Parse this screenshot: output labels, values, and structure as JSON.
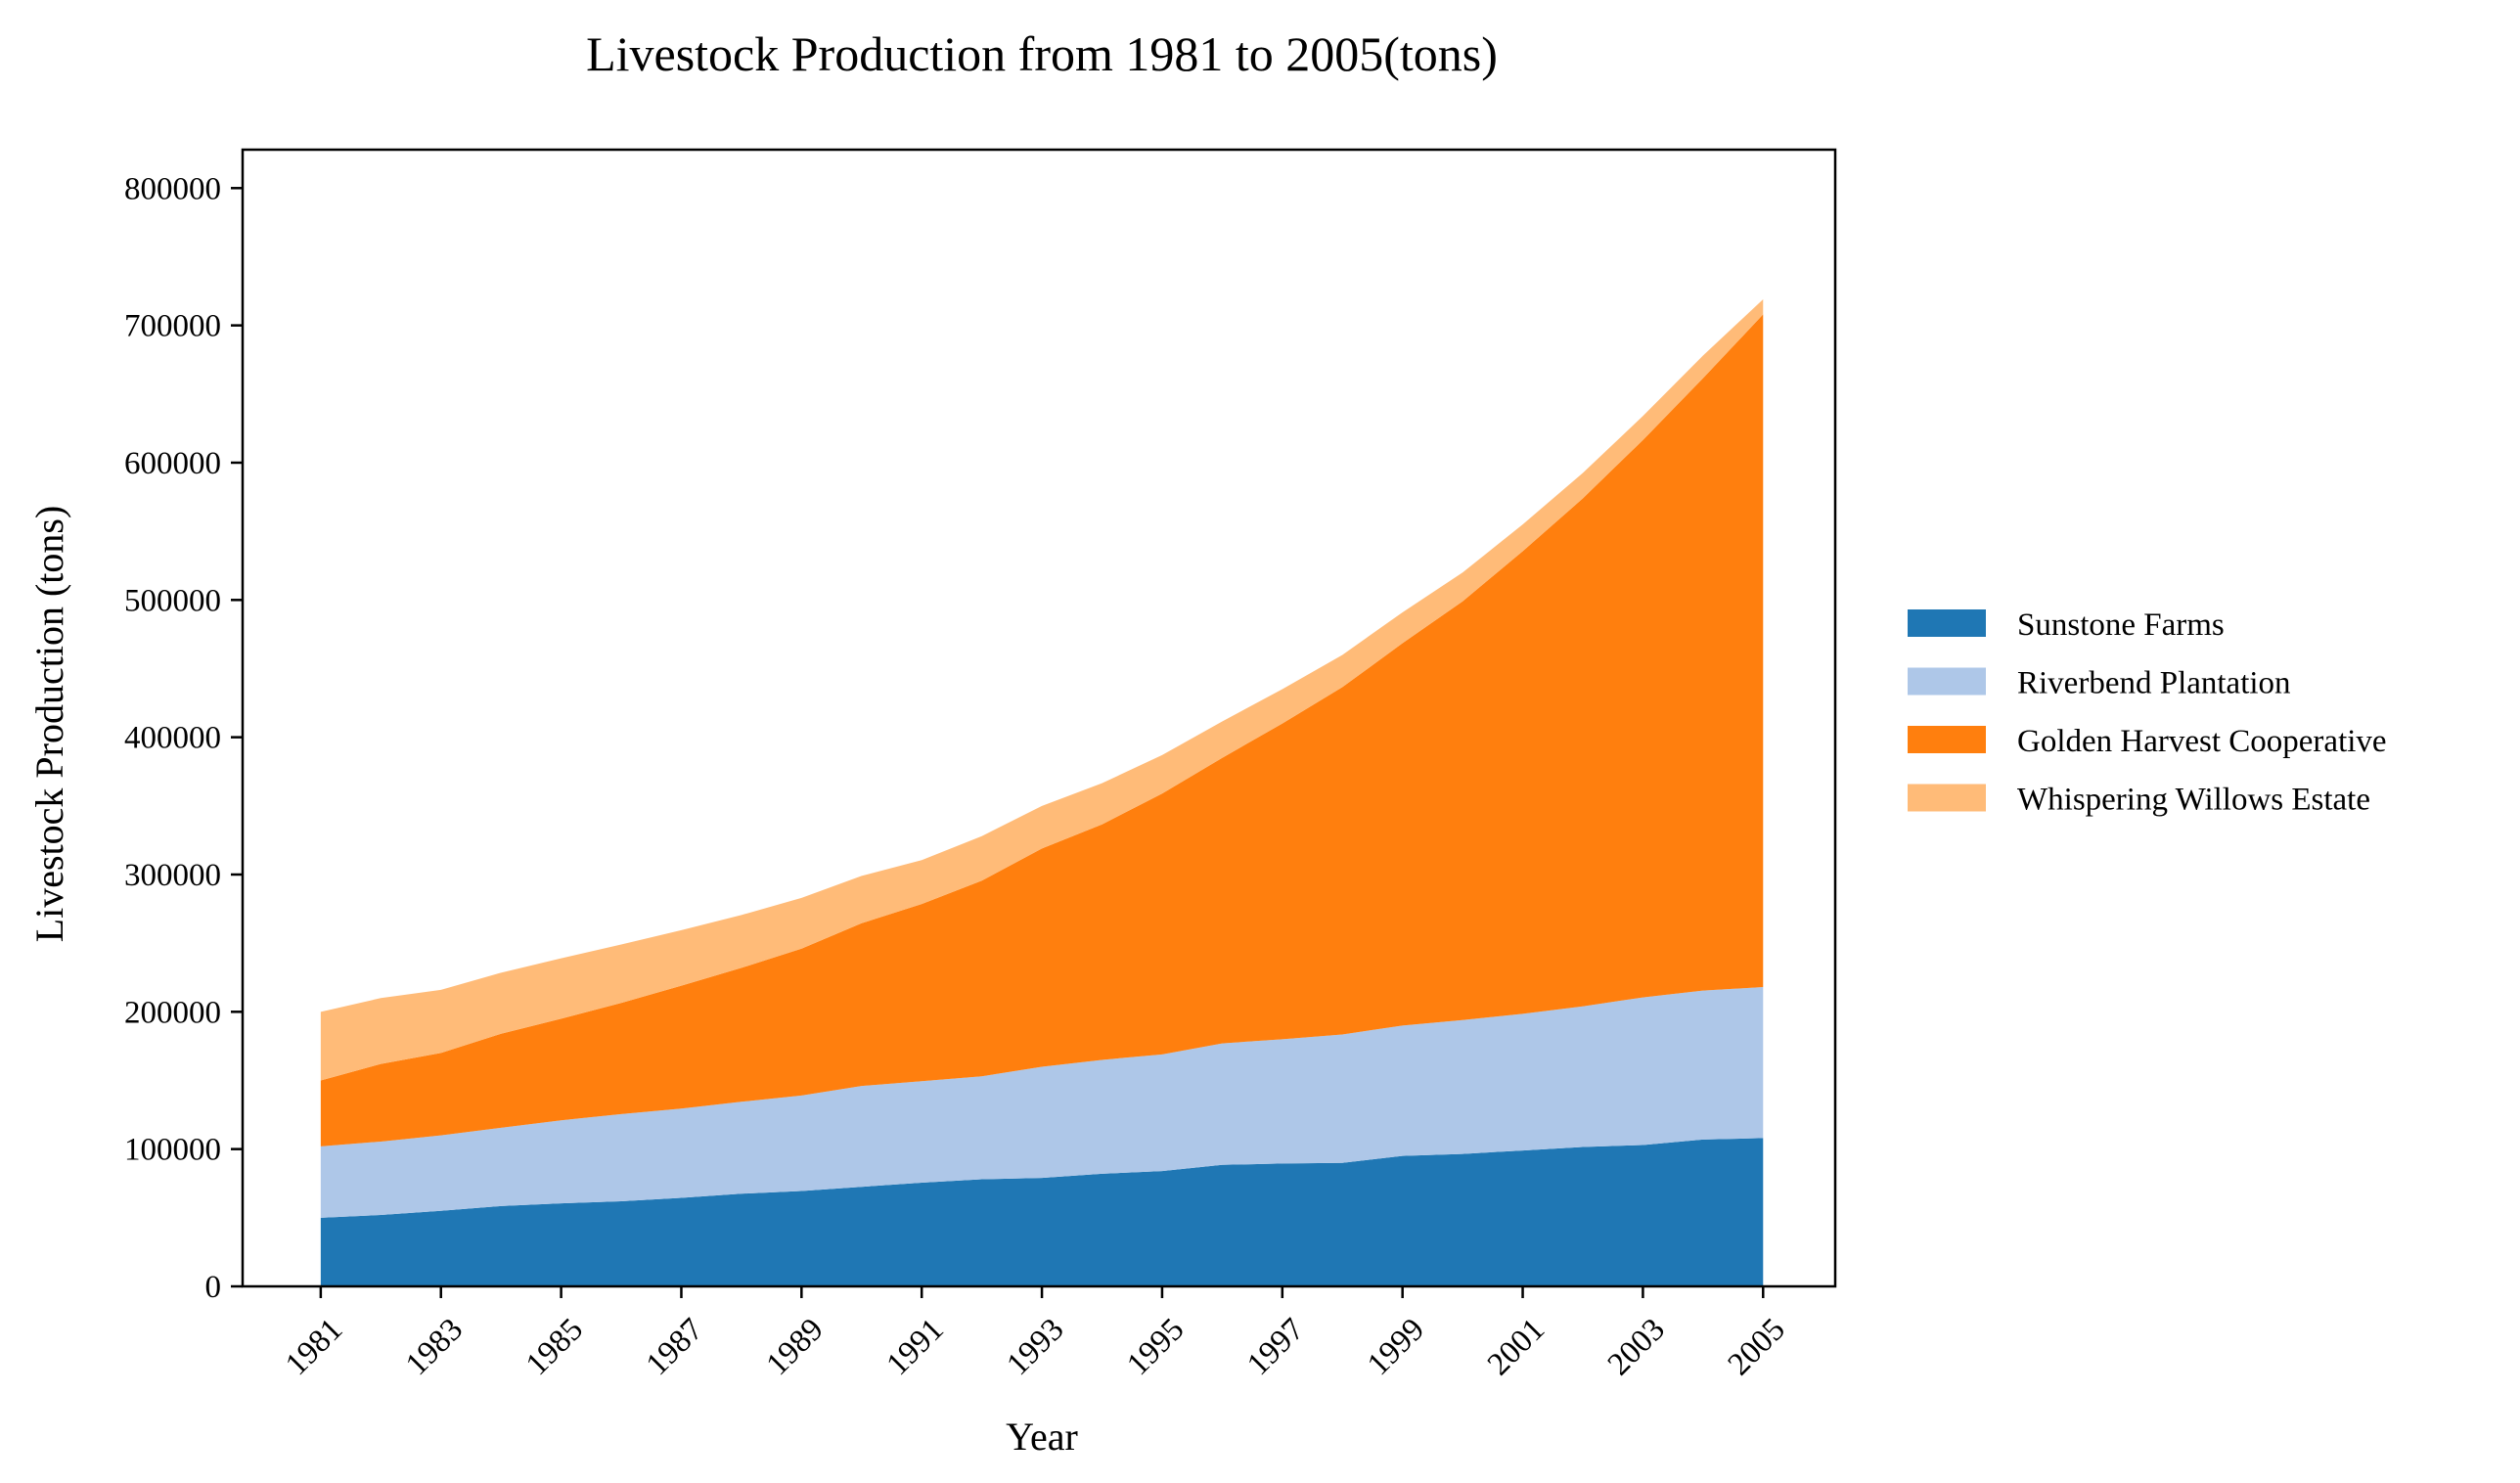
{
  "chart_data": {
    "type": "area",
    "stacked": true,
    "title": "Livestock Production from 1981 to 2005(tons)",
    "xlabel": "Year",
    "ylabel": "Livestock Production (tons)",
    "xlim": [
      1979.7,
      2006.2
    ],
    "ylim": [
      0,
      828000
    ],
    "x": [
      1981,
      1982,
      1983,
      1984,
      1985,
      1986,
      1987,
      1988,
      1989,
      1990,
      1991,
      1992,
      1993,
      1994,
      1995,
      1996,
      1997,
      1998,
      1999,
      2000,
      2001,
      2002,
      2003,
      2004,
      2005
    ],
    "x_ticks": [
      1981,
      1983,
      1985,
      1987,
      1989,
      1991,
      1993,
      1995,
      1997,
      1999,
      2001,
      2003,
      2005
    ],
    "x_tick_labels": [
      "1981",
      "1983",
      "1985",
      "1987",
      "1989",
      "1991",
      "1993",
      "1995",
      "1997",
      "1999",
      "2001",
      "2003",
      "2005"
    ],
    "y_ticks": [
      0,
      100000,
      200000,
      300000,
      400000,
      500000,
      600000,
      700000,
      800000
    ],
    "y_tick_labels": [
      "0",
      "100000",
      "200000",
      "300000",
      "400000",
      "500000",
      "600000",
      "700000",
      "800000"
    ],
    "grid": false,
    "legend_position": "right",
    "series": [
      {
        "name": "Sunstone Farms",
        "color": "#1f77b4",
        "values": [
          50000,
          52000,
          55000,
          58500,
          60500,
          62000,
          64500,
          67500,
          69500,
          72500,
          75500,
          78000,
          79000,
          82000,
          84000,
          88500,
          89500,
          90000,
          95000,
          96500,
          99000,
          101500,
          103000,
          107000,
          108000
        ]
      },
      {
        "name": "Riverbend Plantation",
        "color": "#aec7e8",
        "values": [
          52000,
          53500,
          55000,
          57000,
          60500,
          63500,
          65000,
          67000,
          69500,
          73500,
          74000,
          75000,
          81000,
          83000,
          85000,
          88500,
          90500,
          93500,
          95000,
          97500,
          99500,
          102500,
          107500,
          108500,
          110000
        ]
      },
      {
        "name": "Golden Harvest Cooperative",
        "color": "#ff7f0e",
        "values": [
          48000,
          56500,
          60000,
          68500,
          74000,
          81000,
          89500,
          97500,
          107000,
          118500,
          129000,
          142500,
          159000,
          171500,
          190000,
          208000,
          230000,
          253000,
          278500,
          305000,
          337000,
          370000,
          406000,
          446000,
          490000
        ]
      },
      {
        "name": "Whispering Willows Estate",
        "color": "#ffbb78",
        "values": [
          50000,
          48000,
          46000,
          44500,
          44000,
          42500,
          40500,
          38500,
          37000,
          34500,
          32000,
          32500,
          31000,
          30000,
          28000,
          26500,
          25000,
          23500,
          22500,
          21000,
          19500,
          18500,
          17500,
          16500,
          11000
        ]
      }
    ]
  }
}
